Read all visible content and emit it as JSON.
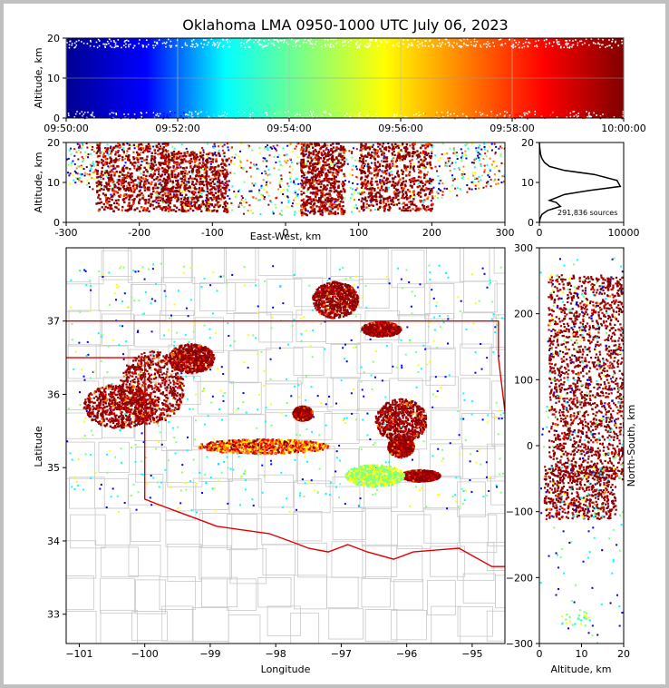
{
  "chart_data": [
    {
      "type": "scatter",
      "panel": "altitude-time",
      "title": "Oklahoma LMA 0950-1000 UTC July 06, 2023",
      "xlabel": "",
      "ylabel": "Altitude, km",
      "xlim": [
        "09:50:00",
        "10:00:00"
      ],
      "ylim": [
        0,
        20
      ],
      "x_ticks": [
        "09:50:00",
        "09:52:00",
        "09:54:00",
        "09:56:00",
        "09:58:00",
        "10:00:00"
      ],
      "y_ticks": [
        0,
        10,
        20
      ],
      "color_by": "time",
      "colormap": [
        "#00008f",
        "#0000ff",
        "#00ffff",
        "#80ff80",
        "#ffff00",
        "#ff8000",
        "#ff0000",
        "#800000"
      ],
      "grid": true
    },
    {
      "type": "scatter",
      "panel": "east-west-altitude",
      "xlabel": "East-West, km",
      "ylabel": "Altitude, km",
      "xlim": [
        -300,
        300
      ],
      "ylim": [
        0,
        20
      ],
      "x_ticks": [
        -300,
        -200,
        -100,
        0,
        100,
        200,
        300
      ],
      "y_ticks": [
        0,
        10,
        20
      ],
      "clusters": [
        {
          "x_min": -260,
          "x_max": -160,
          "z_min": 3,
          "z_max": 20
        },
        {
          "x_min": -170,
          "x_max": -80,
          "z_min": 3,
          "z_max": 18
        },
        {
          "x_min": 20,
          "x_max": 80,
          "z_min": 2,
          "z_max": 20
        },
        {
          "x_min": 100,
          "x_max": 200,
          "z_min": 3,
          "z_max": 20
        }
      ]
    },
    {
      "type": "line",
      "panel": "altitude-histogram",
      "annotation": "291,836 sources",
      "xlim": [
        0,
        10000
      ],
      "ylim": [
        0,
        20
      ],
      "x_ticks": [
        0,
        10000
      ],
      "y_ticks": [
        0,
        10,
        20
      ],
      "x": [
        0,
        100,
        300,
        1000,
        2500,
        2000,
        1200,
        3000,
        6000,
        9600,
        9200,
        6500,
        3000,
        1200,
        600,
        300,
        150,
        50,
        0
      ],
      "y": [
        0,
        1,
        2,
        3,
        4,
        5,
        5.5,
        7,
        8,
        9,
        10.5,
        12,
        13,
        14,
        15,
        16,
        17,
        18.5,
        20
      ]
    },
    {
      "type": "scatter",
      "panel": "plan-view",
      "xlabel": "Longitude",
      "ylabel": "Latitude",
      "xlim": [
        -101.2,
        -94.5
      ],
      "ylim": [
        32.6,
        38.0
      ],
      "x_ticks": [
        -101,
        -100,
        -99,
        -98,
        -97,
        -96,
        -95
      ],
      "y_ticks": [
        33,
        34,
        35,
        36,
        37
      ],
      "clusters": [
        {
          "lon": -100.4,
          "lat": 35.85,
          "rx": 0.55,
          "ry": 0.3,
          "kind": "storm"
        },
        {
          "lon": -99.9,
          "lat": 36.1,
          "rx": 0.5,
          "ry": 0.5,
          "kind": "storm"
        },
        {
          "lon": -99.3,
          "lat": 36.5,
          "rx": 0.35,
          "ry": 0.2,
          "kind": "storm"
        },
        {
          "lon": -97.1,
          "lat": 37.3,
          "rx": 0.35,
          "ry": 0.25,
          "kind": "storm"
        },
        {
          "lon": -96.4,
          "lat": 36.9,
          "rx": 0.3,
          "ry": 0.1,
          "kind": "storm"
        },
        {
          "lon": -96.1,
          "lat": 35.65,
          "rx": 0.4,
          "ry": 0.3,
          "kind": "storm"
        },
        {
          "lon": -96.1,
          "lat": 35.3,
          "rx": 0.2,
          "ry": 0.15,
          "kind": "storm"
        },
        {
          "lon": -95.8,
          "lat": 34.9,
          "rx": 0.3,
          "ry": 0.08,
          "kind": "storm"
        },
        {
          "lon": -97.6,
          "lat": 35.75,
          "rx": 0.15,
          "ry": 0.1,
          "kind": "storm"
        },
        {
          "lon": -98.2,
          "lat": 35.3,
          "rx": 1.0,
          "ry": 0.1,
          "kind": "line"
        },
        {
          "lon": -96.5,
          "lat": 34.9,
          "rx": 0.45,
          "ry": 0.15,
          "kind": "early"
        }
      ],
      "boundaries": [
        {
          "name": "oklahoma-border",
          "color": "#e00000"
        }
      ]
    },
    {
      "type": "scatter",
      "panel": "altitude-north-south",
      "xlabel": "Altitude, km",
      "ylabel": "North-South, km",
      "xlim": [
        0,
        20
      ],
      "ylim": [
        -300,
        300
      ],
      "x_ticks": [
        0,
        10,
        20
      ],
      "y_ticks": [
        -300,
        -200,
        -100,
        0,
        100,
        200,
        300
      ],
      "clusters": [
        {
          "y_min": -50,
          "y_max": 260,
          "z_min": 2,
          "z_max": 20
        },
        {
          "y_min": -110,
          "y_max": -30,
          "z_min": 1,
          "z_max": 18
        },
        {
          "y_min": -275,
          "y_max": -250,
          "z_min": 5,
          "z_max": 12
        }
      ]
    }
  ]
}
